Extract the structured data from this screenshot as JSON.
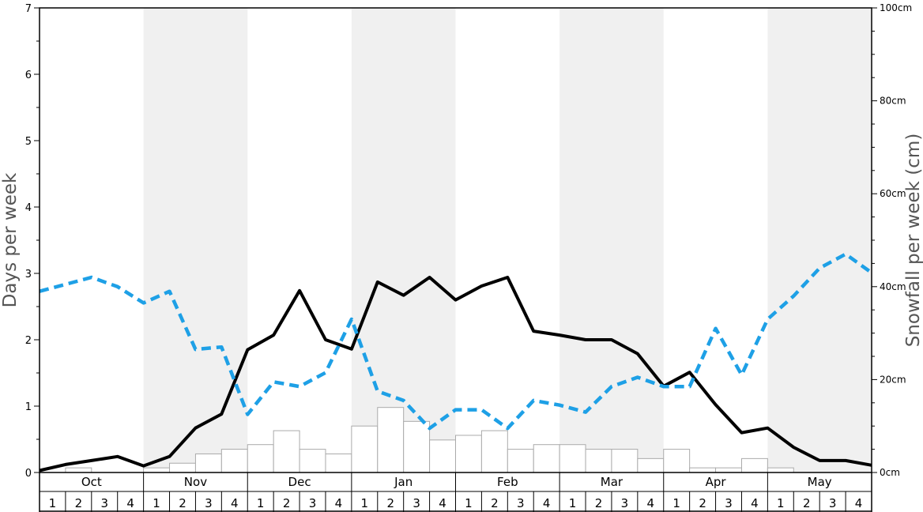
{
  "chart_data": {
    "type": "bar",
    "months": [
      "Oct",
      "Nov",
      "Dec",
      "Jan",
      "Feb",
      "Mar",
      "Apr",
      "May"
    ],
    "weeks_per_month": [
      "1",
      "2",
      "3",
      "4"
    ],
    "shaded_months": [
      "Nov",
      "Jan",
      "Mar",
      "May"
    ],
    "ylabel": "Days per week",
    "ylabel_right": "Snowfall per week (cm)",
    "ylim": [
      0,
      7
    ],
    "yticks": [
      "0",
      "1",
      "2",
      "3",
      "4",
      "5",
      "6",
      "7"
    ],
    "y2lim": [
      0,
      100
    ],
    "y2ticks": [
      "0cm",
      "20cm",
      "40cm",
      "60cm",
      "80cm",
      "100cm"
    ],
    "grid": false,
    "series": [
      {
        "type": "bar",
        "axis": "left",
        "values": [
          0,
          0.07,
          0,
          0,
          0.07,
          0.14,
          0.28,
          0.35,
          0.42,
          0.63,
          0.35,
          0.28,
          0.7,
          0.98,
          0.77,
          0.49,
          0.56,
          0.63,
          0.35,
          0.42,
          0.42,
          0.35,
          0.35,
          0.21,
          0.35,
          0.07,
          0.07,
          0.21,
          0.07,
          0,
          0,
          0
        ],
        "color": "#ffffff",
        "stroke": "#aaaaaa"
      },
      {
        "type": "line",
        "axis": "left",
        "style": "solid",
        "values": [
          0.03,
          0.12,
          0.18,
          0.24,
          0.1,
          0.24,
          0.67,
          0.88,
          1.85,
          2.07,
          2.74,
          2.0,
          1.86,
          2.87,
          2.67,
          2.94,
          2.6,
          2.81,
          2.94,
          2.13,
          2.07,
          2.0,
          2.0,
          1.79,
          1.3,
          1.51,
          1.02,
          0.6,
          0.67,
          0.38,
          0.18,
          0.18,
          0.11
        ],
        "color": "#000000"
      },
      {
        "type": "line",
        "axis": "right",
        "style": "dashed",
        "values": [
          39,
          40.5,
          42,
          40,
          36.5,
          39,
          26.5,
          27,
          12.5,
          19.5,
          18.5,
          21.5,
          33,
          17.5,
          15.5,
          9.5,
          13.5,
          13.5,
          9.5,
          15.5,
          14.5,
          13,
          18.5,
          20.5,
          18.5,
          18.5,
          31,
          21,
          33,
          38,
          44,
          47,
          43
        ],
        "color": "#1ea0e6"
      }
    ]
  }
}
